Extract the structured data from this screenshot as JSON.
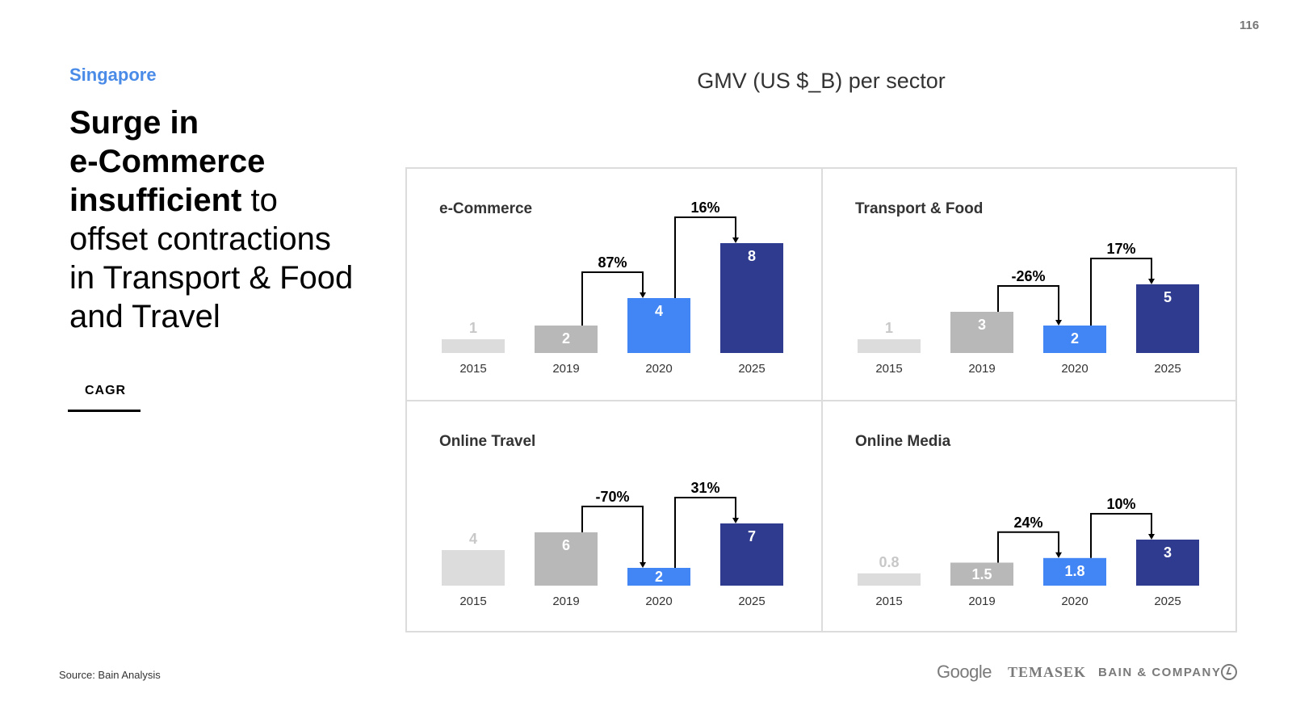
{
  "page_number": "116",
  "region": "Singapore",
  "headline": {
    "bold_line1": "Surge in",
    "bold_line2": "e-Commerce",
    "bold_line3": "insufficient",
    "normal_after_bold": " to",
    "normal_line4": "offset contractions",
    "normal_line5": "in Transport & Food",
    "normal_line6": "and Travel"
  },
  "cagr_legend": "CAGR",
  "main_title": "GMV (US $_B) per sector",
  "source": "Source: Bain Analysis",
  "logos": {
    "google": "Google",
    "temasek": "TEMASEK",
    "bain": "BAIN & COMPANY"
  },
  "colors": {
    "light_gray": "#dcdcdc",
    "mid_gray": "#b8b8b8",
    "blue": "#4285f4",
    "navy": "#2e3b8f",
    "accent": "#4a8be8"
  },
  "chart_data": [
    {
      "type": "bar",
      "title": "e-Commerce",
      "categories": [
        "2015",
        "2019",
        "2020",
        "2025"
      ],
      "values": [
        1,
        2,
        4,
        8
      ],
      "value_labels": [
        "1",
        "2",
        "4",
        "8"
      ],
      "cagr": [
        {
          "from": "2019",
          "to": "2020",
          "label": "87%"
        },
        {
          "from": "2020",
          "to": "2025",
          "label": "16%"
        }
      ]
    },
    {
      "type": "bar",
      "title": "Transport & Food",
      "categories": [
        "2015",
        "2019",
        "2020",
        "2025"
      ],
      "values": [
        1,
        3,
        2,
        5
      ],
      "value_labels": [
        "1",
        "3",
        "2",
        "5"
      ],
      "cagr": [
        {
          "from": "2019",
          "to": "2020",
          "label": "-26%"
        },
        {
          "from": "2020",
          "to": "2025",
          "label": "17%"
        }
      ]
    },
    {
      "type": "bar",
      "title": "Online Travel",
      "categories": [
        "2015",
        "2019",
        "2020",
        "2025"
      ],
      "values": [
        4,
        6,
        2,
        7
      ],
      "value_labels": [
        "4",
        "6",
        "2",
        "7"
      ],
      "cagr": [
        {
          "from": "2019",
          "to": "2020",
          "label": "-70%"
        },
        {
          "from": "2020",
          "to": "2025",
          "label": "31%"
        }
      ]
    },
    {
      "type": "bar",
      "title": "Online Media",
      "categories": [
        "2015",
        "2019",
        "2020",
        "2025"
      ],
      "values": [
        0.8,
        1.5,
        1.8,
        3
      ],
      "value_labels": [
        "0.8",
        "1.5",
        "1.8",
        "3"
      ],
      "cagr": [
        {
          "from": "2019",
          "to": "2020",
          "label": "24%"
        },
        {
          "from": "2020",
          "to": "2025",
          "label": "10%"
        }
      ]
    }
  ]
}
